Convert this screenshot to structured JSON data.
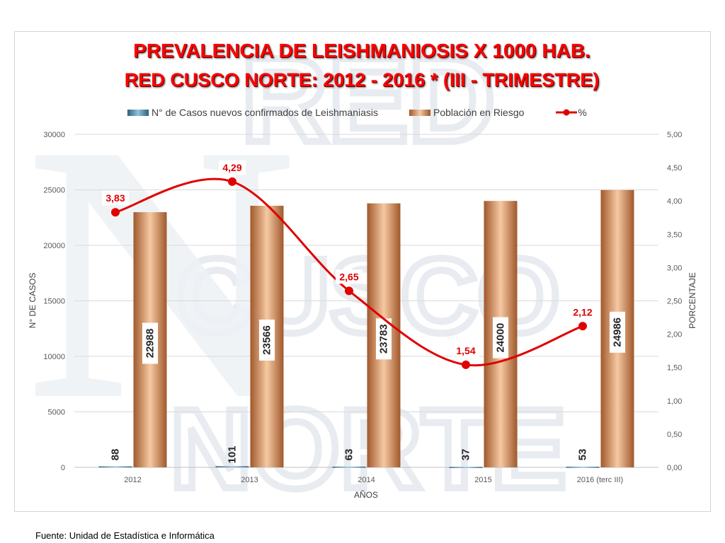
{
  "title_line1": "PREVALENCIA DE LEISHMANIOSIS X 1000 HAB.",
  "title_line2": "RED CUSCO NORTE: 2012 - 2016 * (III - TRIMESTRE)",
  "source_note": "Fuente: Unidad de Estadística e Informática",
  "watermark_text": [
    "RED",
    "CUSCO",
    "NORTE"
  ],
  "colors": {
    "title": "#ff0000",
    "cases_series": "#4a86a8",
    "population_series": "#d9935f",
    "percent_series": "#e00000",
    "percent_labels": "#e00000",
    "grid": "#d9d9d9",
    "axis_text": "#595959"
  },
  "chart_data": {
    "type": "bar",
    "categories": [
      "2012",
      "2013",
      "2014",
      "2015",
      "2016 (terc III)"
    ],
    "series": [
      {
        "name": "N° de Casos nuevos confirmados de Leishmaniasis",
        "type": "bar",
        "axis": "left",
        "values": [
          88,
          101,
          63,
          37,
          53
        ]
      },
      {
        "name": "Población en Riesgo",
        "type": "bar",
        "axis": "left",
        "values": [
          22988,
          23566,
          23783,
          24000,
          24986
        ]
      },
      {
        "name": "%",
        "type": "line",
        "axis": "right",
        "smooth": true,
        "values": [
          3.83,
          4.29,
          2.65,
          1.54,
          2.12
        ],
        "value_labels": [
          "3,83",
          "4,29",
          "2,65",
          "1,54",
          "2,12"
        ]
      }
    ],
    "xlabel": "AÑOS",
    "ylabel": "N° DE CASOS",
    "ylabel_right": "PORCENTAJE",
    "ylim": [
      0,
      30000
    ],
    "y2lim": [
      0,
      5
    ],
    "yticks": [
      "0",
      "5000",
      "10000",
      "15000",
      "20000",
      "25000",
      "30000"
    ],
    "y2ticks": [
      "0,00",
      "0,50",
      "1,00",
      "1,50",
      "2,00",
      "2,50",
      "3,00",
      "3,50",
      "4,00",
      "4,50",
      "5,00"
    ],
    "legend_position": "top",
    "grid": true
  }
}
